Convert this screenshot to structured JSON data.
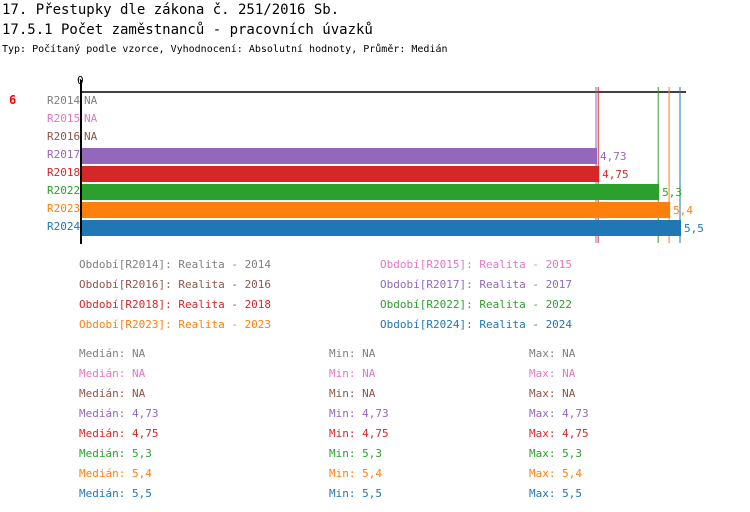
{
  "title": "17. Přestupky dle zákona č. 251/2016 Sb.",
  "subtitle": "17.5.1 Počet zaměstnanců - pracovních úvazků",
  "type_line": "Typ: Počítaný podle vzorce, Vyhodnocení: Absolutní hodnoty, Průměr: Medián",
  "count": "6",
  "chart_data": {
    "type": "bar",
    "orientation": "horizontal",
    "xlim": [
      0,
      5.5
    ],
    "x_tick": "0",
    "series": [
      {
        "name": "R2014",
        "value": null,
        "label": "NA",
        "color": "#7f7f7f",
        "legend": "Období[R2014]: Realita - 2014",
        "median": "Medián: NA",
        "min": "Min: NA",
        "max": "Max: NA"
      },
      {
        "name": "R2015",
        "value": null,
        "label": "NA",
        "color": "#e377c2",
        "legend": "Období[R2015]: Realita - 2015",
        "median": "Medián: NA",
        "min": "Min: NA",
        "max": "Max: NA"
      },
      {
        "name": "R2016",
        "value": null,
        "label": "NA",
        "color": "#8c564b",
        "legend": "Období[R2016]: Realita - 2016",
        "median": "Medián: NA",
        "min": "Min: NA",
        "max": "Max: NA"
      },
      {
        "name": "R2017",
        "value": 4.73,
        "label": "4,73",
        "color": "#9467bd",
        "legend": "Období[R2017]: Realita - 2017",
        "median": "Medián: 4,73",
        "min": "Min: 4,73",
        "max": "Max: 4,73"
      },
      {
        "name": "R2018",
        "value": 4.75,
        "label": "4,75",
        "color": "#d62728",
        "legend": "Období[R2018]: Realita - 2018",
        "median": "Medián: 4,75",
        "min": "Min: 4,75",
        "max": "Max: 4,75"
      },
      {
        "name": "R2022",
        "value": 5.3,
        "label": "5,3",
        "color": "#2ca02c",
        "legend": "Období[R2022]: Realita - 2022",
        "median": "Medián: 5,3",
        "min": "Min: 5,3",
        "max": "Max: 5,3"
      },
      {
        "name": "R2023",
        "value": 5.4,
        "label": "5,4",
        "color": "#ff7f0e",
        "legend": "Období[R2023]: Realita - 2023",
        "median": "Medián: 5,4",
        "min": "Min: 5,4",
        "max": "Max: 5,4"
      },
      {
        "name": "R2024",
        "value": 5.5,
        "label": "5,5",
        "color": "#1f77b4",
        "legend": "Období[R2024]: Realita - 2024",
        "median": "Medián: 5,5",
        "min": "Min: 5,5",
        "max": "Max: 5,5"
      }
    ]
  }
}
